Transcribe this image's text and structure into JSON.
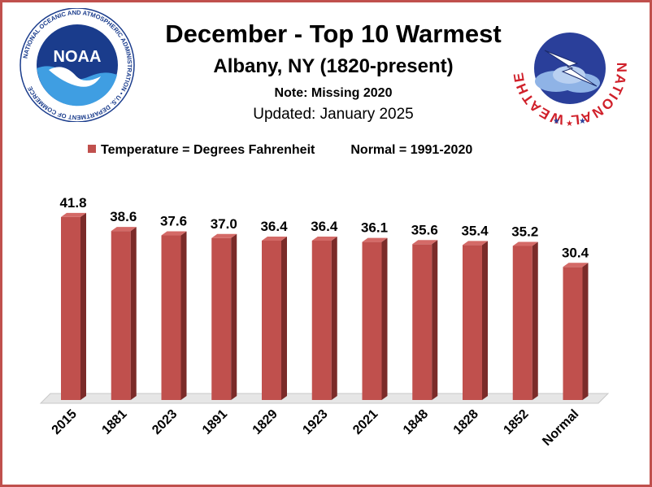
{
  "header": {
    "title": "December - Top 10 Warmest",
    "subtitle": "Albany, NY (1820-present)",
    "note": "Note: Missing 2020",
    "updated": "Updated: January 2025"
  },
  "legend": {
    "series_label": "Temperature = Degrees Fahrenheit",
    "normal_label": "Normal = 1991-2020"
  },
  "logos": {
    "noaa_text": "NOAA",
    "noaa_ring_text": "NATIONAL OCEANIC AND ATMOSPHERIC ADMINISTRATION • U.S. DEPARTMENT OF COMMERCE",
    "nws_ring_text": "NATIONAL WEATHER SERVICE"
  },
  "colors": {
    "bar_front": "#c0504d",
    "bar_side": "#7b2b29",
    "bar_top": "#d46a67",
    "frame": "#c0504d"
  },
  "chart_data": {
    "type": "bar",
    "categories": [
      "2015",
      "1881",
      "2023",
      "1891",
      "1829",
      "1923",
      "2021",
      "1848",
      "1828",
      "1852",
      "Normal"
    ],
    "values": [
      41.8,
      38.6,
      37.6,
      37.0,
      36.4,
      36.4,
      36.1,
      35.6,
      35.4,
      35.2,
      30.4
    ],
    "value_labels": [
      "41.8",
      "38.6",
      "37.6",
      "37.0",
      "36.4",
      "36.4",
      "36.1",
      "35.6",
      "35.4",
      "35.2",
      "30.4"
    ],
    "title": "December - Top 10 Warmest",
    "xlabel": "",
    "ylabel": "",
    "ylim": [
      0,
      45
    ],
    "grid": false,
    "legend_position": "top",
    "data_labels": true,
    "three_d": true
  }
}
